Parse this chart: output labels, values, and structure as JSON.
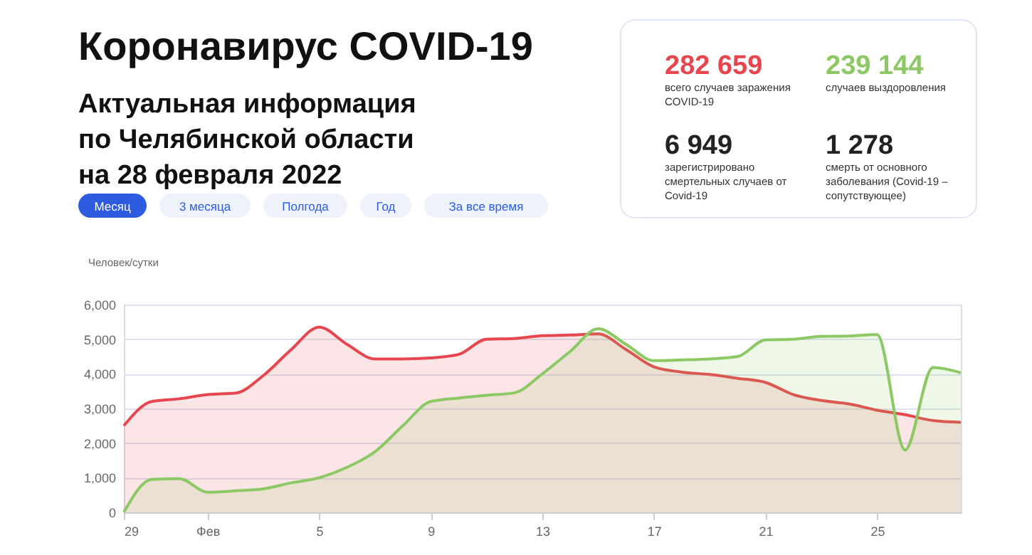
{
  "chart_data": {
    "type": "area",
    "title": "Коронавирус COVID-19",
    "subtitle": "Актуальная информация по Челябинской области на 28 февраля 2022",
    "ylabel": "Человек/сутки",
    "annotations": [
      "282 659",
      "всего случаев заражения COVID-19",
      "239 144",
      "случаев выздоровления",
      "6 949",
      "зарегистрировано смертельных случаев от Covid-19",
      "1 278",
      "смерть от основного заболевания (Covid-19 – сопутствующее)",
      "Месяц",
      "3 месяца",
      "Полгода",
      "Год",
      "За все время"
    ],
    "x": [
      "2022-01-29",
      "2022-01-30",
      "2022-01-31",
      "2022-02-01",
      "2022-02-02",
      "2022-02-03",
      "2022-02-04",
      "2022-02-05",
      "2022-02-06",
      "2022-02-07",
      "2022-02-08",
      "2022-02-09",
      "2022-02-10",
      "2022-02-11",
      "2022-02-12",
      "2022-02-13",
      "2022-02-14",
      "2022-02-15",
      "2022-02-16",
      "2022-02-17",
      "2022-02-18",
      "2022-02-19",
      "2022-02-20",
      "2022-02-21",
      "2022-02-22",
      "2022-02-23",
      "2022-02-24",
      "2022-02-25",
      "2022-02-26",
      "2022-02-27",
      "2022-02-28"
    ],
    "series": [
      {
        "color": "#e8464f",
        "values": [
          2500,
          3200,
          3280,
          3400,
          3440,
          3950,
          4700,
          5350,
          4850,
          4430,
          4430,
          4460,
          4560,
          5000,
          5020,
          5100,
          5120,
          5150,
          4700,
          4200,
          4050,
          3980,
          3870,
          3750,
          3400,
          3230,
          3130,
          2950,
          2820,
          2650,
          2600
        ]
      },
      {
        "color": "#8cc864",
        "values": [
          0,
          950,
          970,
          580,
          620,
          680,
          850,
          1000,
          1300,
          1750,
          2500,
          3200,
          3300,
          3380,
          3450,
          4000,
          4650,
          5300,
          4850,
          4380,
          4400,
          4430,
          4500,
          4980,
          5000,
          5080,
          5090,
          5130,
          1800,
          4180,
          4030
        ]
      }
    ],
    "xlim": [
      "2022-01-29",
      "2022-02-28"
    ],
    "xticks": [
      {
        "value": "2022-01-29",
        "label": "29"
      },
      {
        "value": "2022-02-01",
        "label": "Фев"
      },
      {
        "value": "2022-02-05",
        "label": "5"
      },
      {
        "value": "2022-02-09",
        "label": "9"
      },
      {
        "value": "2022-02-13",
        "label": "13"
      },
      {
        "value": "2022-02-17",
        "label": "17"
      },
      {
        "value": "2022-02-21",
        "label": "21"
      },
      {
        "value": "2022-02-25",
        "label": "25"
      }
    ],
    "ylim": [
      0,
      6000
    ],
    "yticks": [
      {
        "value": 0,
        "label": "0"
      },
      {
        "value": 1000,
        "label": "1,000"
      },
      {
        "value": 2000,
        "label": "2,000"
      },
      {
        "value": 3000,
        "label": "3,000"
      },
      {
        "value": 4000,
        "label": "4,000"
      },
      {
        "value": 5000,
        "label": "5,000"
      },
      {
        "value": 6000,
        "label": "6,000"
      }
    ],
    "grid": "y",
    "marker": "none",
    "line_style": "solid"
  }
}
